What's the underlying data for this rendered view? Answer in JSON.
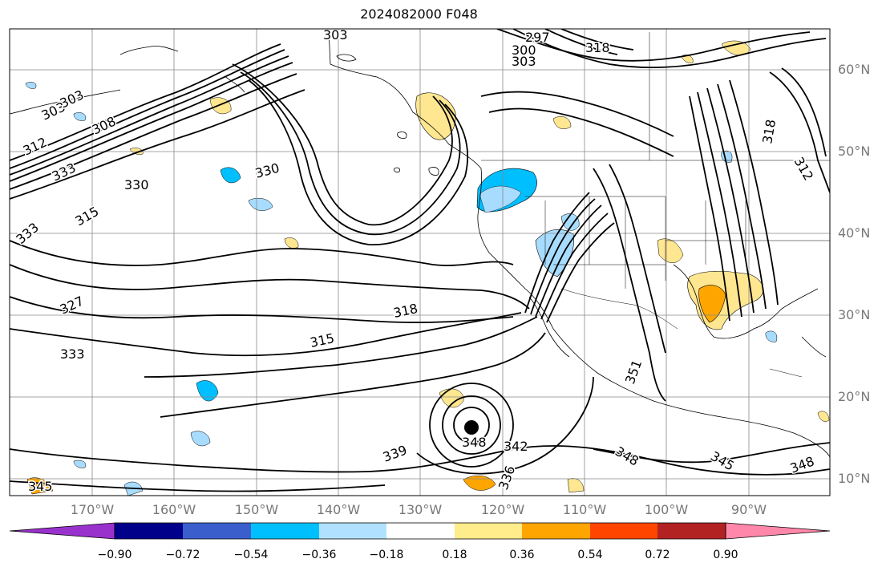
{
  "title": "2024082000 F048",
  "map": {
    "lat_labels": [
      "60°N",
      "50°N",
      "40°N",
      "30°N",
      "20°N",
      "10°N"
    ],
    "lon_labels": [
      "170°W",
      "160°W",
      "150°W",
      "140°W",
      "130°W",
      "120°W",
      "110°W",
      "100°W",
      "90°W"
    ],
    "contour_labels": [
      "303",
      "297",
      "300",
      "303",
      "318",
      "303",
      "303",
      "308",
      "312",
      "333",
      "330",
      "330",
      "315",
      "333",
      "327",
      "333",
      "315",
      "318",
      "345",
      "339",
      "348",
      "342",
      "348",
      "345",
      "348",
      "336",
      "312",
      "318",
      "351"
    ]
  },
  "colorbar": {
    "tick_labels": [
      "−0.90",
      "−0.72",
      "−0.54",
      "−0.36",
      "−0.18",
      "0.18",
      "0.36",
      "0.54",
      "0.72",
      "0.90"
    ],
    "colors": [
      "#9932cc",
      "#00008b",
      "#3a5fcd",
      "#00bfff",
      "#b0e2ff",
      "#ffffff",
      "#ffec8b",
      "#ffa500",
      "#ff4500",
      "#b22222",
      "#ff88aa"
    ]
  },
  "colors": {
    "negative_fill": "#a8dcff",
    "negative_fill_strong": "#00bfff",
    "positive_fill": "#ffe690",
    "positive_fill_strong": "#ffa500"
  }
}
